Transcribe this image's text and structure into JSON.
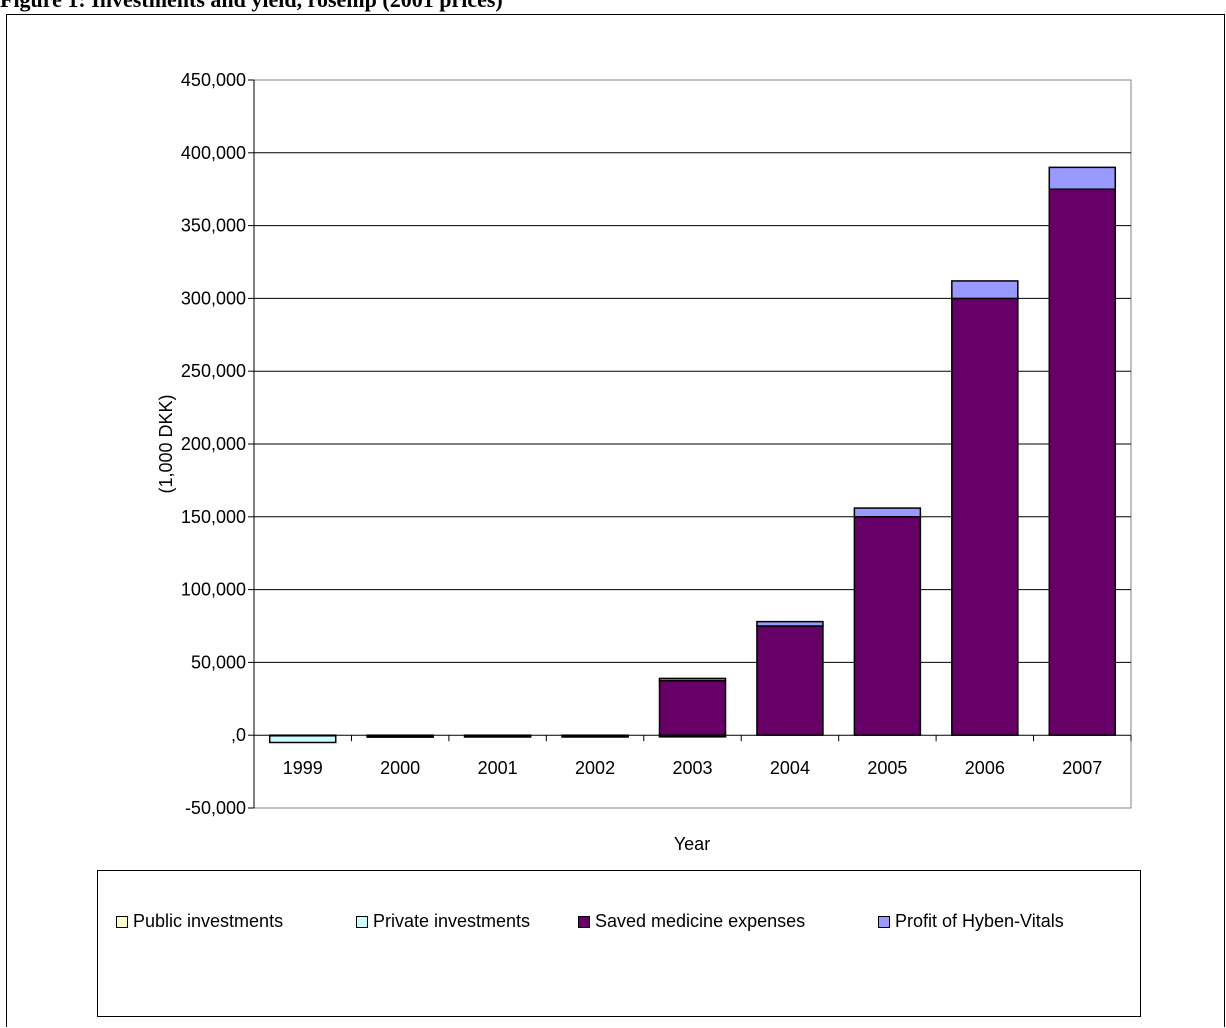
{
  "figure": {
    "title": "Figure 1: Investments and yield, rosehip (2001 prices)"
  },
  "chart_data": {
    "type": "bar",
    "stacked": true,
    "categories": [
      "1999",
      "2000",
      "2001",
      "2002",
      "2003",
      "2004",
      "2005",
      "2006",
      "2007"
    ],
    "series": [
      {
        "name": "Public investments",
        "color": "#FFFFCC",
        "values": [
          -400,
          -300,
          -200,
          -200,
          -100,
          0,
          0,
          0,
          0
        ]
      },
      {
        "name": "Private investments",
        "color": "#CCFFFF",
        "values": [
          -4600,
          -1000,
          -500,
          -500,
          -500,
          0,
          0,
          0,
          0
        ]
      },
      {
        "name": "Saved medicine expenses",
        "color": "#660066",
        "values": [
          0,
          0,
          0,
          0,
          37500,
          75000,
          150000,
          300000,
          375000
        ]
      },
      {
        "name": "Profit of Hyben-Vitals",
        "color": "#9999FF",
        "values": [
          0,
          0,
          0,
          0,
          1500,
          3000,
          6000,
          12000,
          15000
        ]
      }
    ],
    "xlabel": "Year",
    "ylabel": "(1,000 DKK)",
    "ylim": [
      -50000,
      450000
    ],
    "y_ticks": [
      450000,
      400000,
      350000,
      300000,
      250000,
      200000,
      150000,
      100000,
      50000,
      0,
      -50000
    ],
    "y_tick_labels": [
      "450,000",
      "400,000",
      "350,000",
      "300,000",
      "250,000",
      "200,000",
      "150,000",
      "100,000",
      "50,000",
      ",0",
      "-50,000"
    ],
    "grid": true,
    "legend_position": "bottom"
  }
}
